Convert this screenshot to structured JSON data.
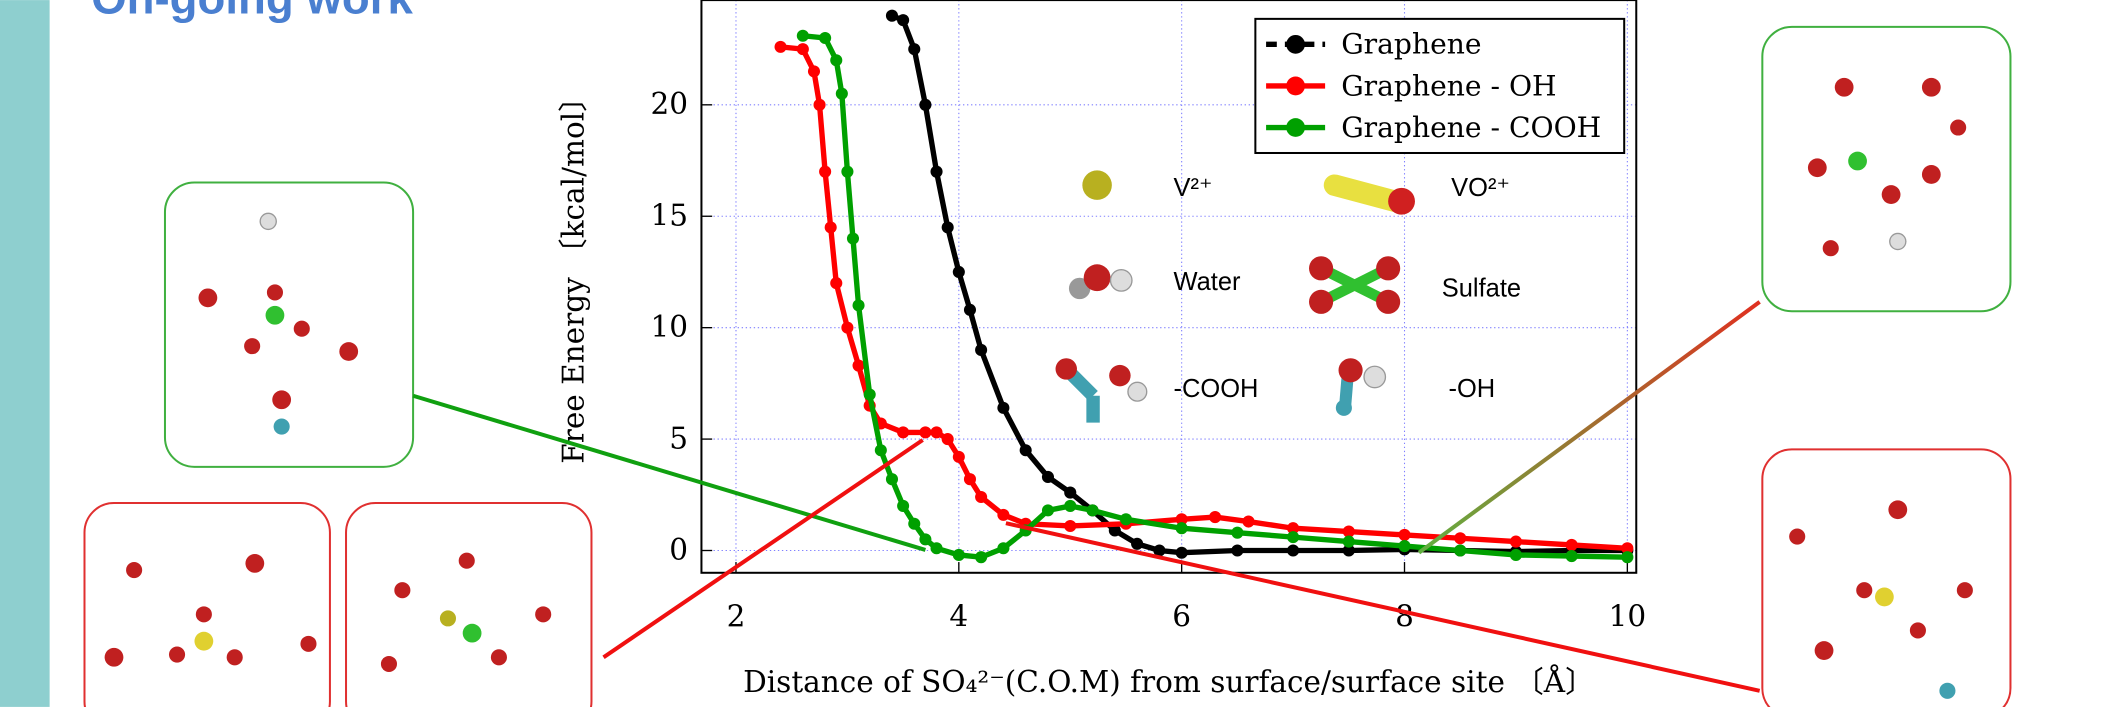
{
  "slide_title": "On-going work",
  "chart_data": {
    "type": "line",
    "xlabel": "Distance of SO₄²⁻(C.O.M) from surface/surface site 〔Å〕",
    "ylabel": "Free Energy 〔kcal/mol〕",
    "xlim": [
      1.69,
      10.08
    ],
    "ylim": [
      -1,
      24.7
    ],
    "xticks": [
      2,
      4,
      6,
      8,
      10
    ],
    "yticks": [
      0,
      5,
      10,
      15,
      20
    ],
    "grid": true,
    "legend": "upper right",
    "series": [
      {
        "name": "Graphene",
        "color": "#000000",
        "x": [
          3.4,
          3.5,
          3.6,
          3.7,
          3.8,
          3.9,
          4.0,
          4.1,
          4.2,
          4.4,
          4.6,
          4.8,
          5.0,
          5.2,
          5.4,
          5.6,
          5.8,
          6.0,
          6.5,
          7,
          7.5,
          8,
          8.5,
          9,
          9.5,
          10
        ],
        "values": [
          24.0,
          23.8,
          22.5,
          20,
          17,
          14.5,
          12.5,
          10.8,
          9,
          6.4,
          4.5,
          3.3,
          2.6,
          1.8,
          0.9,
          0.3,
          0,
          -0.1,
          0,
          0,
          0,
          0.05,
          0,
          -0.05,
          0,
          0
        ]
      },
      {
        "name": "Graphene - OH",
        "color": "#ff0000",
        "x": [
          2.4,
          2.6,
          2.7,
          2.75,
          2.8,
          2.85,
          2.9,
          3.0,
          3.1,
          3.2,
          3.3,
          3.5,
          3.7,
          3.8,
          3.9,
          4.0,
          4.1,
          4.2,
          4.4,
          4.6,
          5.0,
          5.5,
          6.0,
          6.3,
          6.6,
          7,
          7.5,
          8,
          8.5,
          9,
          9.5,
          10
        ],
        "values": [
          22.6,
          22.5,
          21.5,
          20,
          17,
          14.5,
          12,
          10,
          8.3,
          6.5,
          5.7,
          5.3,
          5.3,
          5.3,
          5.0,
          4.2,
          3.2,
          2.4,
          1.6,
          1.2,
          1.1,
          1.2,
          1.4,
          1.5,
          1.3,
          1.0,
          0.85,
          0.7,
          0.55,
          0.4,
          0.25,
          0.1
        ]
      },
      {
        "name": "Graphene - COOH",
        "color": "#00a000",
        "x": [
          2.6,
          2.8,
          2.9,
          2.95,
          3.0,
          3.05,
          3.1,
          3.2,
          3.3,
          3.4,
          3.5,
          3.6,
          3.7,
          3.8,
          4.0,
          4.2,
          4.4,
          4.6,
          4.8,
          5.0,
          5.2,
          5.5,
          6,
          6.5,
          7,
          7.5,
          8,
          8.5,
          9,
          9.5,
          10
        ],
        "values": [
          23.1,
          23.0,
          22,
          20.5,
          17,
          14,
          11,
          7,
          4.5,
          3.2,
          2.0,
          1.2,
          0.5,
          0.1,
          -0.2,
          -0.3,
          0.1,
          0.9,
          1.8,
          2.0,
          1.8,
          1.4,
          1.0,
          0.8,
          0.6,
          0.4,
          0.2,
          0,
          -0.2,
          -0.25,
          -0.3
        ]
      }
    ]
  },
  "molecule_legend": [
    "V²⁺",
    "VO²⁺",
    "Water",
    "Sulfate",
    "-COOH",
    "-OH"
  ]
}
